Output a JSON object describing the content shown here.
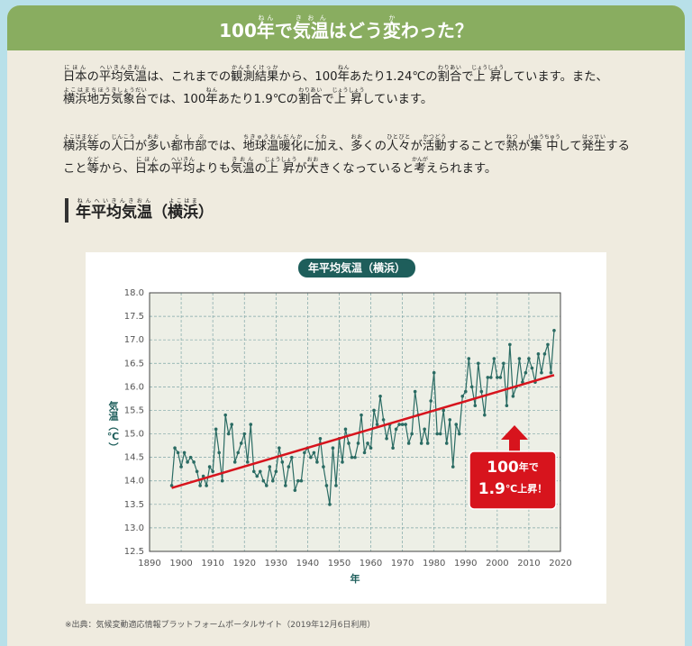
{
  "header": {
    "title": [
      "100",
      {
        "text": "年",
        "ruby": "ねん"
      },
      "で",
      {
        "text": "気温",
        "ruby": "きおん"
      },
      "はどう",
      {
        "text": "変",
        "ruby": "か"
      },
      "わった？"
    ]
  },
  "paragraphs": [
    [
      {
        "text": "日本",
        "ruby": "にほん"
      },
      "の",
      {
        "text": "平均気温",
        "ruby": "へいきんきおん"
      },
      "は、これまでの",
      {
        "text": "観測結果",
        "ruby": "かんそくけっか"
      },
      "から、100",
      {
        "text": "年",
        "ruby": "ねん"
      },
      "あたり1.24℃の",
      {
        "text": "割合",
        "ruby": "わりあい"
      },
      "で",
      {
        "text": "上昇",
        "ruby": "じょうしょう"
      },
      "しています。また、",
      {
        "text": "横浜地方",
        "ruby": "よこはまちほう"
      },
      {
        "text": "気象台",
        "ruby": "きしょうだい"
      },
      "では、100",
      {
        "text": "年",
        "ruby": "ねん"
      },
      "あたり1.9℃の",
      {
        "text": "割合",
        "ruby": "わりあい"
      },
      "で",
      {
        "text": "上昇",
        "ruby": "じょうしょう"
      },
      "しています。"
    ],
    [
      {
        "text": "横浜等",
        "ruby": "よこはまなど"
      },
      "の",
      {
        "text": "人口",
        "ruby": "じんこう"
      },
      "が",
      {
        "text": "多",
        "ruby": "おお"
      },
      "い",
      {
        "text": "都市部",
        "ruby": "としぶ"
      },
      "では、",
      {
        "text": "地球温暖化",
        "ruby": "ちきゅうおんだんか"
      },
      "に",
      {
        "text": "加",
        "ruby": "くわ"
      },
      "え、",
      {
        "text": "多",
        "ruby": "おお"
      },
      "くの",
      {
        "text": "人々",
        "ruby": "ひとびと"
      },
      "が",
      {
        "text": "活動",
        "ruby": "かつどう"
      },
      "することで",
      {
        "text": "熱",
        "ruby": "ねつ"
      },
      "が",
      {
        "text": "集中",
        "ruby": "しゅうちゅう"
      },
      "して",
      {
        "text": "発生",
        "ruby": "はっせい"
      },
      "すること",
      {
        "text": "等",
        "ruby": "など"
      },
      "から、",
      {
        "text": "日本",
        "ruby": "にほん"
      },
      "の",
      {
        "text": "平均",
        "ruby": "へいきん"
      },
      "よりも",
      {
        "text": "気温",
        "ruby": "きおん"
      },
      "の",
      {
        "text": "上昇",
        "ruby": "じょうしょう"
      },
      "が",
      {
        "text": "大",
        "ruby": "おお"
      },
      "きくなっていると",
      {
        "text": "考",
        "ruby": "かんが"
      },
      "えられます。"
    ]
  ],
  "section_heading": [
    {
      "text": "年平均気温",
      "ruby": "ねんへいきんきおん"
    },
    "（",
    {
      "text": "横浜",
      "ruby": "よこはま"
    },
    "）"
  ],
  "chart_data": {
    "type": "line",
    "title": "年平均気温（横浜）",
    "xlabel": "年",
    "ylabel": "気温（℃）",
    "color": "#2a6b63",
    "x": [
      1897,
      1898,
      1899,
      1900,
      1901,
      1902,
      1903,
      1904,
      1905,
      1906,
      1907,
      1908,
      1909,
      1910,
      1911,
      1912,
      1913,
      1914,
      1915,
      1916,
      1917,
      1918,
      1919,
      1920,
      1921,
      1922,
      1923,
      1924,
      1925,
      1926,
      1927,
      1928,
      1929,
      1930,
      1931,
      1932,
      1933,
      1934,
      1935,
      1936,
      1937,
      1938,
      1939,
      1940,
      1941,
      1942,
      1943,
      1944,
      1945,
      1946,
      1947,
      1948,
      1949,
      1950,
      1951,
      1952,
      1953,
      1954,
      1955,
      1956,
      1957,
      1958,
      1959,
      1960,
      1961,
      1962,
      1963,
      1964,
      1965,
      1966,
      1967,
      1968,
      1969,
      1970,
      1971,
      1972,
      1973,
      1974,
      1975,
      1976,
      1977,
      1978,
      1979,
      1980,
      1981,
      1982,
      1983,
      1984,
      1985,
      1986,
      1987,
      1988,
      1989,
      1990,
      1991,
      1992,
      1993,
      1994,
      1995,
      1996,
      1997,
      1998,
      1999,
      2000,
      2001,
      2002,
      2003,
      2004,
      2005,
      2006,
      2007,
      2008,
      2009,
      2010,
      2011,
      2012,
      2013,
      2014,
      2015,
      2016,
      2017,
      2018
    ],
    "values": [
      13.9,
      14.7,
      14.6,
      14.3,
      14.6,
      14.4,
      14.5,
      14.4,
      14.2,
      13.9,
      14.1,
      13.9,
      14.3,
      14.2,
      15.1,
      14.6,
      14.0,
      15.4,
      15.0,
      15.2,
      14.4,
      14.6,
      14.8,
      15.0,
      14.4,
      15.2,
      14.2,
      14.1,
      14.2,
      14.0,
      13.9,
      14.3,
      14.0,
      14.2,
      14.7,
      14.4,
      13.9,
      14.3,
      14.5,
      13.8,
      14.0,
      14.0,
      14.6,
      14.7,
      14.5,
      14.6,
      14.4,
      14.9,
      14.3,
      13.9,
      13.5,
      14.7,
      13.9,
      14.9,
      14.4,
      15.1,
      14.8,
      14.5,
      14.5,
      14.8,
      15.4,
      14.6,
      14.8,
      14.7,
      15.5,
      15.2,
      15.8,
      15.3,
      14.9,
      15.2,
      14.7,
      15.1,
      15.2,
      15.2,
      15.2,
      14.8,
      15.0,
      15.9,
      15.4,
      14.8,
      15.1,
      14.8,
      15.7,
      16.3,
      15.0,
      15.0,
      15.5,
      14.8,
      15.3,
      14.3,
      15.2,
      15.0,
      15.8,
      15.9,
      16.6,
      16.0,
      15.6,
      16.5,
      15.9,
      15.4,
      16.2,
      16.2,
      16.6,
      16.2,
      16.2,
      16.5,
      15.6,
      16.9,
      15.8,
      16.0,
      16.6,
      16.1,
      16.3,
      16.6,
      16.4,
      16.1,
      16.7,
      16.3,
      16.7,
      16.9,
      16.3,
      17.2
    ],
    "trend": {
      "x": [
        1897,
        2018
      ],
      "values": [
        13.85,
        16.25
      ],
      "color": "#d7141d"
    },
    "xlim": [
      1890,
      2020
    ],
    "xticks": [
      1890,
      1900,
      1910,
      1920,
      1930,
      1940,
      1950,
      1960,
      1970,
      1980,
      1990,
      2000,
      2010,
      2020
    ],
    "ylim": [
      12.5,
      18.0
    ],
    "yticks": [
      12.5,
      {
        "value": 13,
        "label": "13.0"
      },
      13.5,
      {
        "value": 14,
        "label": "14.0"
      },
      14.5,
      {
        "value": 15,
        "label": "15.0"
      },
      15.5,
      {
        "value": 16,
        "label": "16.0"
      },
      16.5,
      {
        "value": 17,
        "label": "17.0"
      },
      17.5,
      {
        "value": 18,
        "label": "18.0"
      }
    ],
    "grid": true,
    "annotation": [
      [
        "100",
        "年で"
      ],
      [
        "1.9",
        "℃上昇！"
      ]
    ],
    "annotation_color": "#d7141d"
  },
  "source": "※出典：気候変動適応情報プラットフォームポータルサイト（2019年12月6日利用）"
}
